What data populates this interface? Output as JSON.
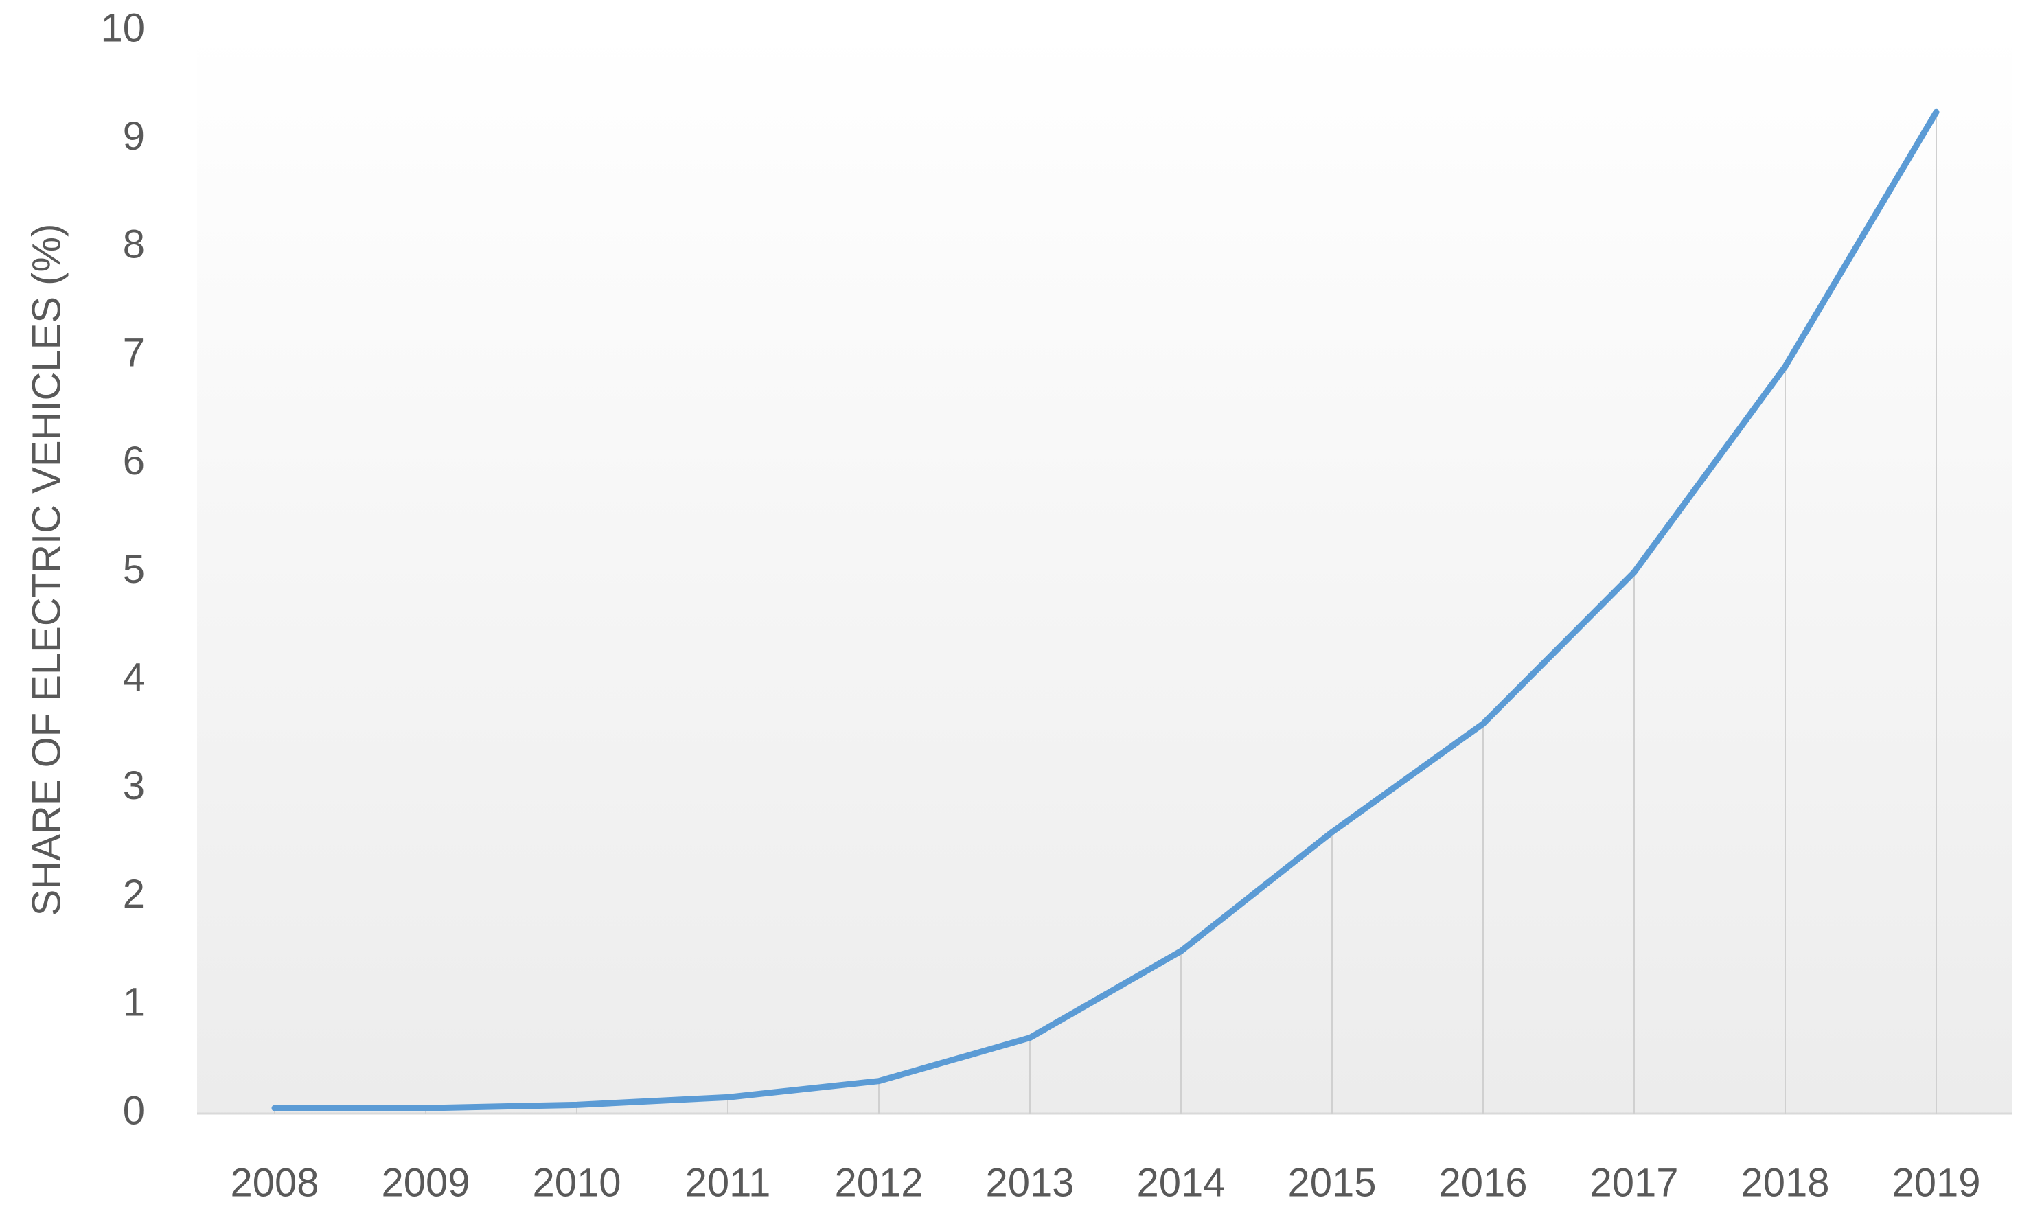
{
  "chart_data": {
    "type": "line",
    "y_label": "SHARE OF ELECTRIC VEHICLES (%)",
    "categories": [
      "2008",
      "2009",
      "2010",
      "2011",
      "2012",
      "2013",
      "2014",
      "2015",
      "2016",
      "2017",
      "2018",
      "2019"
    ],
    "series": [
      {
        "color": "#5b9bd5",
        "values": [
          0.05,
          0.05,
          0.08,
          0.15,
          0.3,
          0.7,
          1.5,
          2.6,
          3.6,
          5.0,
          6.9,
          9.25
        ]
      }
    ],
    "ylim": [
      0,
      10
    ],
    "yticks": [
      0,
      1,
      2,
      3,
      4,
      5,
      6,
      7,
      8,
      9,
      10
    ],
    "drop_lines": true
  }
}
